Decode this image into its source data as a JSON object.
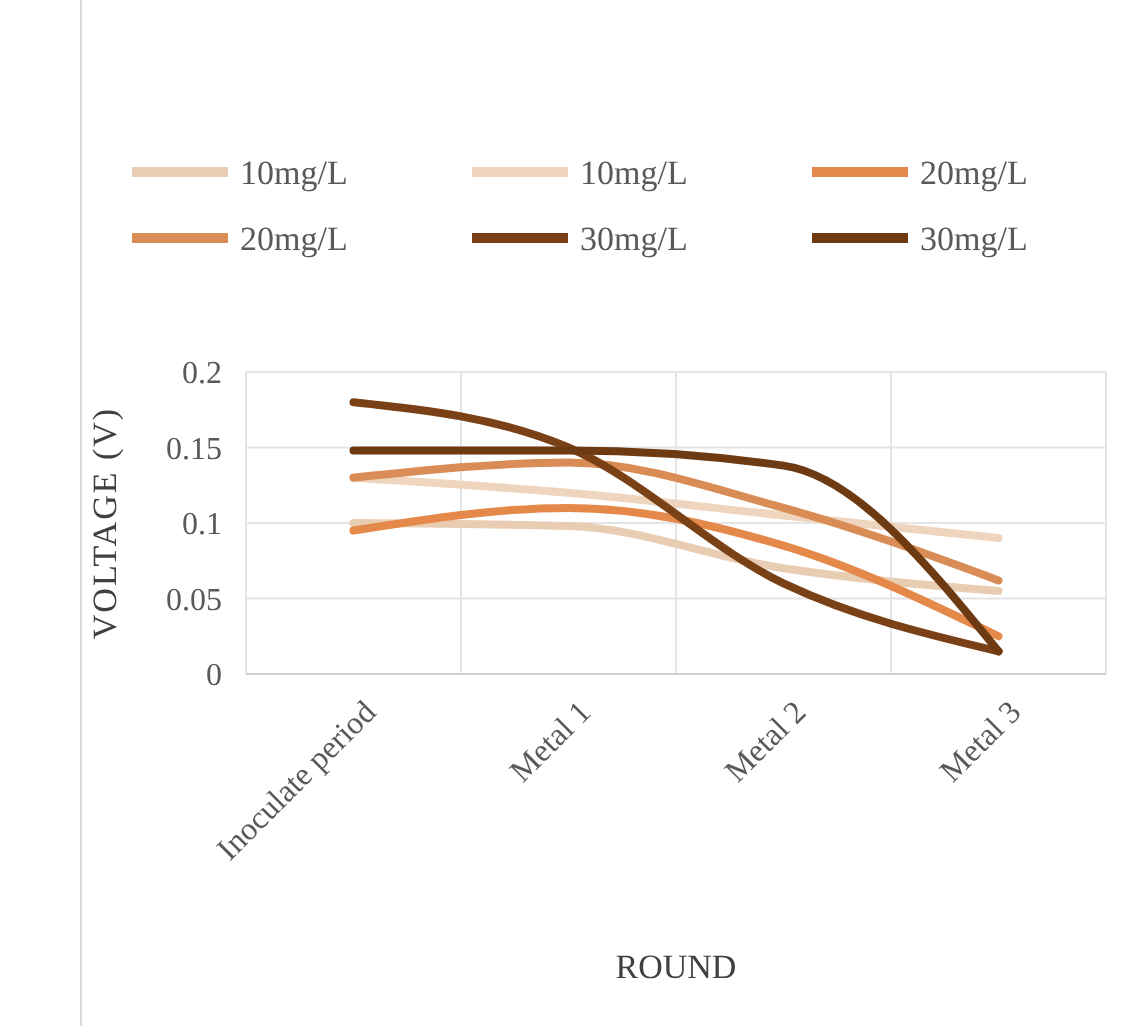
{
  "chart_data": {
    "type": "line",
    "xlabel": "ROUND",
    "ylabel": "VOLTAGE (V)",
    "categories": [
      "Inoculate period",
      "Metal 1",
      "Metal 2",
      "Metal 3"
    ],
    "ylim": [
      0,
      0.2
    ],
    "yticks": [
      0,
      0.05,
      0.1,
      0.15,
      0.2
    ],
    "grid": true,
    "legend": "top",
    "series": [
      {
        "name": "10mg/L",
        "color": "#e9cdb3",
        "values": [
          0.1,
          0.098,
          0.07,
          0.055
        ]
      },
      {
        "name": "10mg/L",
        "color": "#efd5bd",
        "values": [
          0.13,
          0.12,
          0.105,
          0.09
        ]
      },
      {
        "name": "20mg/L",
        "color": "#e5894a",
        "values": [
          0.095,
          0.11,
          0.085,
          0.025
        ]
      },
      {
        "name": "20mg/L",
        "color": "#d98c55",
        "values": [
          0.13,
          0.14,
          0.11,
          0.062
        ]
      },
      {
        "name": "30mg/L",
        "color": "#7a4016",
        "values": [
          0.18,
          0.15,
          0.06,
          0.015
        ]
      },
      {
        "name": "30mg/L",
        "color": "#6e3a12",
        "values": [
          0.148,
          0.148,
          0.138,
          0.015
        ]
      }
    ]
  }
}
